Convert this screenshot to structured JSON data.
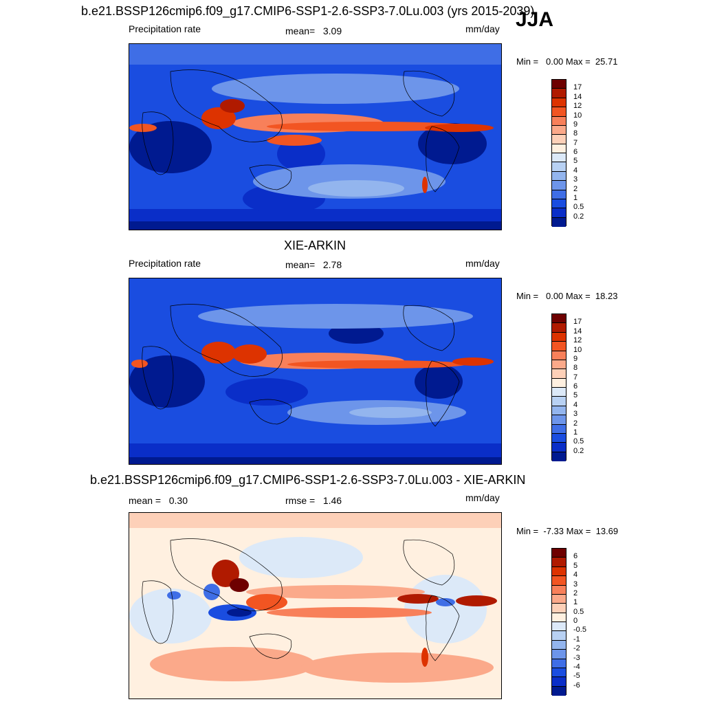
{
  "season": "JJA",
  "panels": [
    {
      "title": "b.e21.BSSP126cmip6.f09_g17.CMIP6-SSP1-2.6-SSP3-7.0Lu.003 (yrs 2015-2039)",
      "left_label": "Precipitation rate",
      "center_label": "mean=   3.09",
      "units": "mm/day",
      "minmax": "Min =   0.00 Max =  25.71",
      "levels": [
        "17",
        "14",
        "12",
        "10",
        "9",
        "8",
        "7",
        "6",
        "5",
        "4",
        "3",
        "2",
        "1",
        "0.5",
        "0.2"
      ],
      "colors": [
        "#6e0000",
        "#b01a00",
        "#dd3300",
        "#f25522",
        "#f8805a",
        "#fba98a",
        "#fdd0b8",
        "#fff0e0",
        "#dce9f8",
        "#b8d1f3",
        "#93b5ee",
        "#6d95ea",
        "#3f6ee6",
        "#1a4de0",
        "#0a2ec8",
        "#001a90"
      ]
    },
    {
      "title": "XIE-ARKIN",
      "left_label": "Precipitation rate",
      "center_label": "mean=   2.78",
      "units": "mm/day",
      "minmax": "Min =   0.00 Max =  18.23",
      "levels": [
        "17",
        "14",
        "12",
        "10",
        "9",
        "8",
        "7",
        "6",
        "5",
        "4",
        "3",
        "2",
        "1",
        "0.5",
        "0.2"
      ],
      "colors": [
        "#6e0000",
        "#b01a00",
        "#dd3300",
        "#f25522",
        "#f8805a",
        "#fba98a",
        "#fdd0b8",
        "#fff0e0",
        "#dce9f8",
        "#b8d1f3",
        "#93b5ee",
        "#6d95ea",
        "#3f6ee6",
        "#1a4de0",
        "#0a2ec8",
        "#001a90"
      ]
    },
    {
      "title": "b.e21.BSSP126cmip6.f09_g17.CMIP6-SSP1-2.6-SSP3-7.0Lu.003 - XIE-ARKIN",
      "left_label": "mean =   0.30",
      "center_label": "rmse =   1.46",
      "units": "mm/day",
      "minmax": "Min =  -7.33 Max =  13.69",
      "levels": [
        "6",
        "5",
        "4",
        "3",
        "2",
        "1",
        "0.5",
        "0",
        "-0.5",
        "-1",
        "-2",
        "-3",
        "-4",
        "-5",
        "-6"
      ],
      "colors": [
        "#6e0000",
        "#b01a00",
        "#dd3300",
        "#f25522",
        "#f8805a",
        "#fba98a",
        "#fdd0b8",
        "#fff0e0",
        "#dce9f8",
        "#b8d1f3",
        "#93b5ee",
        "#6d95ea",
        "#3f6ee6",
        "#1a4de0",
        "#0a2ec8",
        "#001a90"
      ]
    }
  ]
}
